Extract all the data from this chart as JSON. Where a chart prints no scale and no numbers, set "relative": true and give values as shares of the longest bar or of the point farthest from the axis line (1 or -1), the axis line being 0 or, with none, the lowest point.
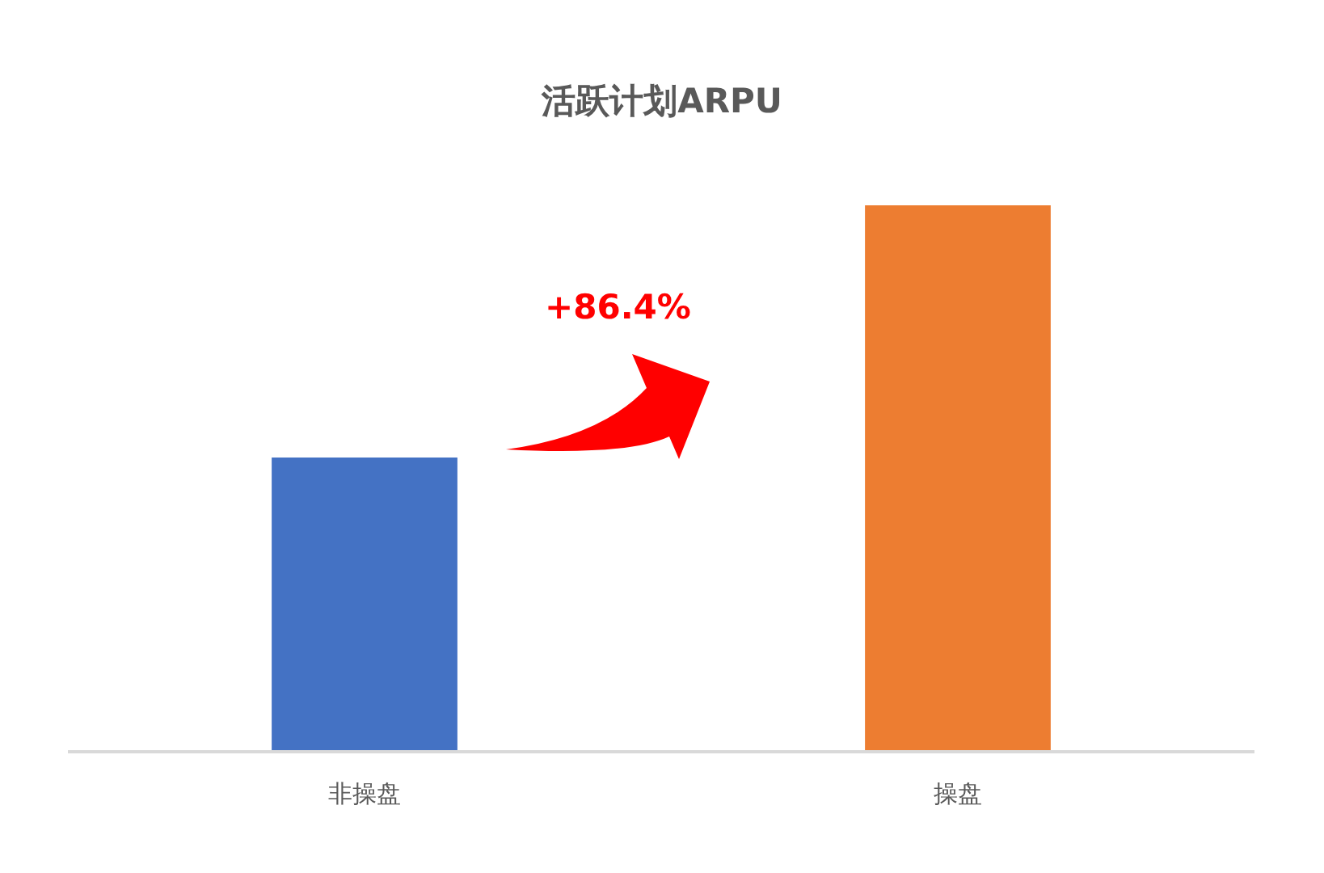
{
  "chart_data": {
    "type": "bar",
    "title": "活跃计划ARPU",
    "categories": [
      "非操盘",
      "操盘"
    ],
    "values": [
      0.537,
      1
    ],
    "colors": [
      "#4472c4",
      "#ed7d31"
    ],
    "relative": true,
    "annotations": [
      "+86.4%"
    ]
  }
}
